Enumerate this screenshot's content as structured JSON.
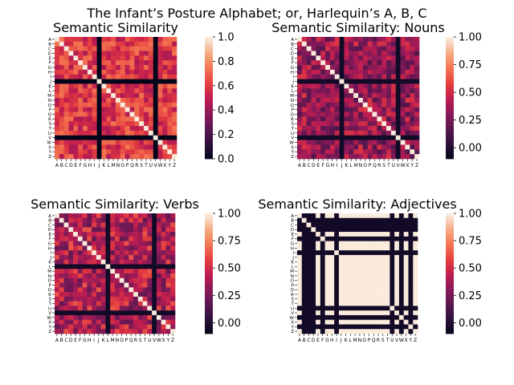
{
  "figure": {
    "suptitle": "The Infant’s Posture Alphabet; or, Harlequin’s A, B, C"
  },
  "chart_data": [
    {
      "type": "heatmap",
      "title": "Semantic Similarity",
      "row_labels": [
        "A",
        "B",
        "C",
        "D",
        "E",
        "F",
        "G",
        "H",
        "I",
        "J",
        "K",
        "L",
        "M",
        "N",
        "O",
        "P",
        "Q",
        "R",
        "S",
        "T",
        "U",
        "V",
        "W",
        "X",
        "Y",
        "Z"
      ],
      "col_labels": [
        "A",
        "B",
        "C",
        "D",
        "E",
        "F",
        "G",
        "H",
        "I",
        "J",
        "K",
        "L",
        "M",
        "N",
        "O",
        "P",
        "Q",
        "R",
        "S",
        "T",
        "U",
        "V",
        "W",
        "X",
        "Y",
        "Z"
      ],
      "diagonal": 1.0,
      "low_rows_cols": [
        9,
        21
      ],
      "low_value": 0.0,
      "typical_range": [
        0.45,
        0.75
      ],
      "colorbar": {
        "min": 0.0,
        "max": 1.0,
        "ticks": [
          0.0,
          0.2,
          0.4,
          0.6,
          0.8,
          1.0
        ]
      },
      "colormap": "rocket"
    },
    {
      "type": "heatmap",
      "title": "Semantic Similarity: Nouns",
      "row_labels": [
        "A",
        "B",
        "C",
        "D",
        "E",
        "F",
        "G",
        "H",
        "I",
        "J",
        "K",
        "L",
        "M",
        "N",
        "O",
        "P",
        "Q",
        "R",
        "S",
        "T",
        "U",
        "V",
        "W",
        "X",
        "Y",
        "Z"
      ],
      "col_labels": [
        "A",
        "B",
        "C",
        "D",
        "E",
        "F",
        "G",
        "H",
        "I",
        "J",
        "K",
        "L",
        "M",
        "N",
        "O",
        "P",
        "Q",
        "R",
        "S",
        "T",
        "U",
        "V",
        "W",
        "X",
        "Y",
        "Z"
      ],
      "diagonal": 1.0,
      "low_rows_cols": [
        9,
        21
      ],
      "low_value": -0.05,
      "typical_range": [
        0.15,
        0.55
      ],
      "colorbar": {
        "min": -0.1,
        "max": 1.0,
        "ticks": [
          0.0,
          0.25,
          0.5,
          0.75,
          1.0
        ]
      },
      "colormap": "rocket"
    },
    {
      "type": "heatmap",
      "title": "Semantic Similarity: Verbs",
      "row_labels": [
        "A",
        "B",
        "C",
        "D",
        "E",
        "F",
        "G",
        "H",
        "I",
        "J",
        "K",
        "L",
        "M",
        "N",
        "O",
        "P",
        "Q",
        "R",
        "S",
        "T",
        "U",
        "V",
        "W",
        "X",
        "Y",
        "Z"
      ],
      "col_labels": [
        "A",
        "B",
        "C",
        "D",
        "E",
        "F",
        "G",
        "H",
        "I",
        "J",
        "K",
        "L",
        "M",
        "N",
        "O",
        "P",
        "Q",
        "R",
        "S",
        "T",
        "U",
        "V",
        "W",
        "X",
        "Y",
        "Z"
      ],
      "diagonal": 1.0,
      "low_rows_cols": [
        11,
        21
      ],
      "low_value": -0.05,
      "typical_range": [
        0.2,
        0.65
      ],
      "colorbar": {
        "min": -0.1,
        "max": 1.0,
        "ticks": [
          0.0,
          0.25,
          0.5,
          0.75,
          1.0
        ]
      },
      "colormap": "rocket"
    },
    {
      "type": "heatmap",
      "title": "Semantic Similarity: Adjectives",
      "row_labels": [
        "A",
        "B",
        "C",
        "D",
        "E",
        "F",
        "G",
        "H",
        "I",
        "J",
        "K",
        "L",
        "M",
        "N",
        "O",
        "P",
        "Q",
        "R",
        "S",
        "T",
        "U",
        "V",
        "W",
        "X",
        "Y",
        "Z"
      ],
      "col_labels": [
        "A",
        "B",
        "C",
        "D",
        "E",
        "F",
        "G",
        "H",
        "I",
        "J",
        "K",
        "L",
        "M",
        "N",
        "O",
        "P",
        "Q",
        "R",
        "S",
        "T",
        "U",
        "V",
        "W",
        "X",
        "Y",
        "Z"
      ],
      "diagonal": 1.0,
      "low_rows_cols": [
        1,
        2,
        3,
        5,
        8,
        20,
        22,
        24
      ],
      "low_value": -0.05,
      "typical_range": [
        1.0,
        1.0
      ],
      "colorbar": {
        "min": -0.1,
        "max": 1.0,
        "ticks": [
          0.0,
          0.25,
          0.5,
          0.75,
          1.0
        ]
      },
      "colormap": "rocket"
    }
  ]
}
